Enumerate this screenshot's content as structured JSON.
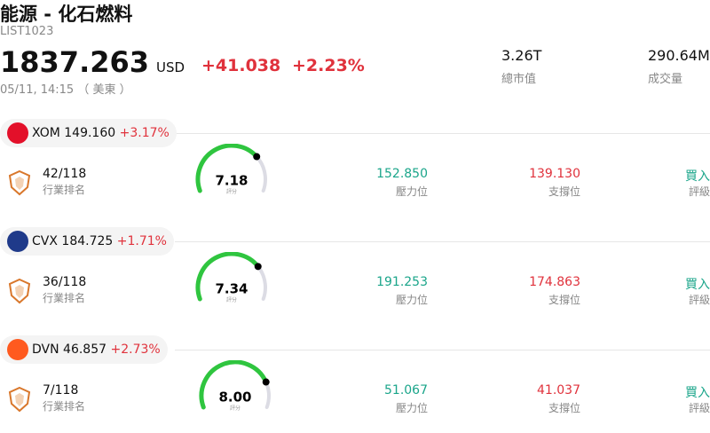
{
  "header": {
    "title": "能源 - 化石燃料",
    "code": "LIST1023",
    "price": "1837.263",
    "currency": "USD",
    "change": "+41.038",
    "change_pct": "+2.23%",
    "time": "05/11, 14:15 （ 美東 ）"
  },
  "stats": [
    {
      "value": "3.26T",
      "label": "總市值"
    },
    {
      "value": "290.64M",
      "label": "成交量"
    }
  ],
  "stocks": [
    {
      "ticker": "XOM",
      "price": "149.160",
      "change_pct": "+3.17%",
      "rank": "42/118",
      "rank_label": "行業排名",
      "score": "7.18",
      "score_label": "評分",
      "resistance": "152.850",
      "resistance_label": "壓力位",
      "support": "139.130",
      "support_label": "支撐位",
      "rating": "買入",
      "rating_label": "評級"
    },
    {
      "ticker": "CVX",
      "price": "184.725",
      "change_pct": "+1.71%",
      "rank": "36/118",
      "rank_label": "行業排名",
      "score": "7.34",
      "score_label": "評分",
      "resistance": "191.253",
      "resistance_label": "壓力位",
      "support": "174.863",
      "support_label": "支撐位",
      "rating": "買入",
      "rating_label": "評級"
    },
    {
      "ticker": "DVN",
      "price": "46.857",
      "change_pct": "+2.73%",
      "rank": "7/118",
      "rank_label": "行業排名",
      "score": "8.00",
      "score_label": "評分",
      "resistance": "51.067",
      "resistance_label": "壓力位",
      "support": "41.037",
      "support_label": "支撐位",
      "rating": "買入",
      "rating_label": "評級"
    }
  ]
}
